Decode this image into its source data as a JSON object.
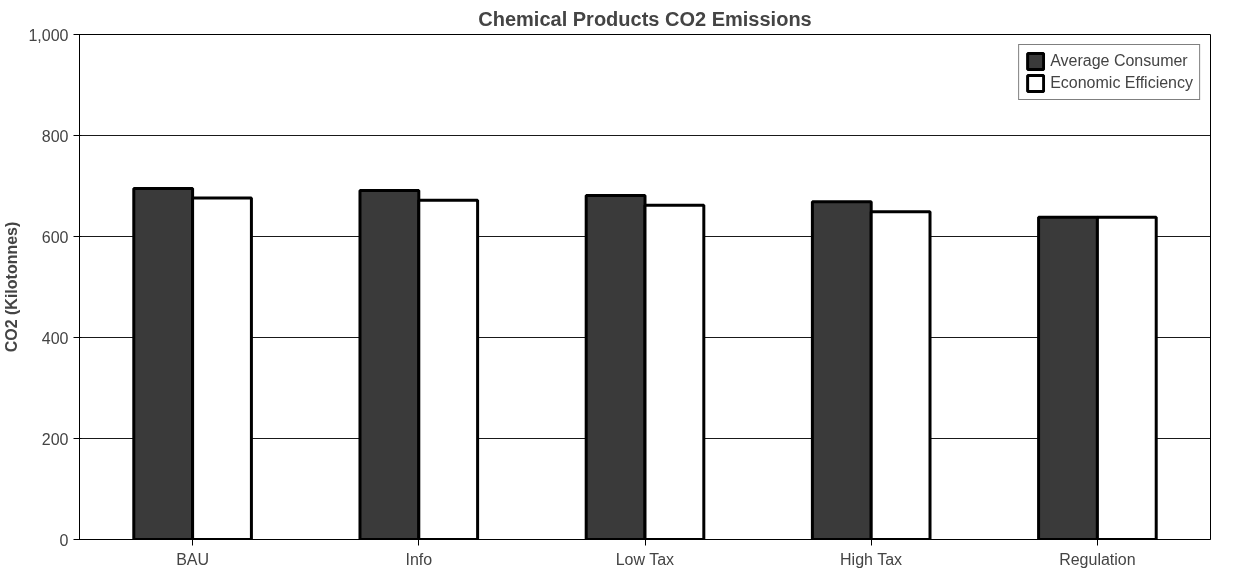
{
  "chart_data": {
    "type": "bar",
    "title": "Chemical Products CO2 Emissions",
    "ylabel": "CO2 (Kilotonnes)",
    "categories": [
      "BAU",
      "Info",
      "Low Tax",
      "High Tax",
      "Regulation"
    ],
    "series": [
      {
        "name": "Average Consumer",
        "color": "#3a3a3a",
        "values": [
          695,
          691,
          681,
          669,
          638
        ]
      },
      {
        "name": "Economic Efficiency",
        "color": "#ffffff",
        "values": [
          676,
          672,
          662,
          649,
          638
        ]
      }
    ],
    "ylim": [
      0,
      1000
    ],
    "yticks": [
      0,
      200,
      400,
      600,
      800,
      {
        "value": 1000,
        "label": "1,000"
      }
    ],
    "grid": "y",
    "legend": "top right"
  }
}
